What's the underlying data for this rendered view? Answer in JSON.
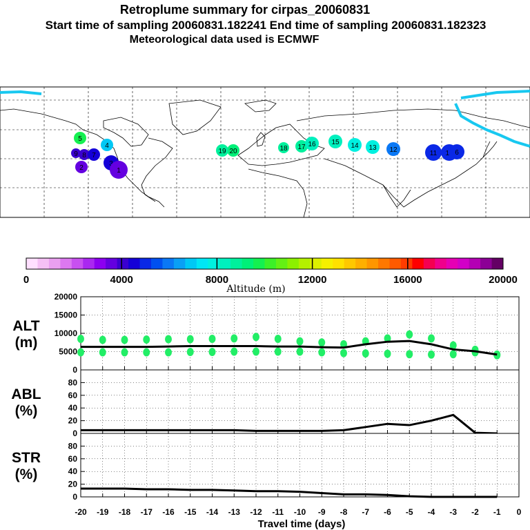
{
  "titles": {
    "line1": "Retroplume summary for cirpas_20060831",
    "line2": "Start time of sampling 20060831.182241     End time of sampling 20060831.182323",
    "line3": "Meteorological data used is ECMWF"
  },
  "colorbar": {
    "colors": [
      "#ffe0ff",
      "#f5c0f5",
      "#eaa0f0",
      "#dc78f0",
      "#c850f0",
      "#aa28f0",
      "#8c00f0",
      "#6400e0",
      "#3a00d0",
      "#1400d8",
      "#0a28e6",
      "#0050f0",
      "#0a78f5",
      "#0aa0f5",
      "#00c8f5",
      "#00e6f5",
      "#00f0e0",
      "#00f0be",
      "#00f09c",
      "#00f078",
      "#14f050",
      "#3cf028",
      "#64f014",
      "#8cf000",
      "#b4f000",
      "#dcf000",
      "#f5f000",
      "#ffe100",
      "#ffc800",
      "#ffaf00",
      "#ff9600",
      "#ff7800",
      "#ff5a00",
      "#ff3c00",
      "#ff0000",
      "#f50050",
      "#f0008c",
      "#e600b4",
      "#d200c8",
      "#b400b4",
      "#8c0096",
      "#640064"
    ],
    "tick_labels": [
      "0",
      "4000",
      "8000",
      "12000",
      "16000",
      "20000"
    ],
    "label": "Altitude (m)"
  },
  "map": {
    "plumes": [
      {
        "label": "20",
        "alt": 9500
      },
      {
        "label": "19",
        "alt": 9000
      },
      {
        "label": "18",
        "alt": 8800
      },
      {
        "label": "17",
        "alt": 8600
      },
      {
        "label": "16",
        "alt": 8400
      },
      {
        "label": "15",
        "alt": 8200
      },
      {
        "label": "14",
        "alt": 8000
      },
      {
        "label": "13",
        "alt": 7800
      },
      {
        "label": "12",
        "alt": 6000
      },
      {
        "label": "11",
        "alt": 5200
      },
      {
        "label": "10",
        "alt": 4800
      },
      {
        "label": "9",
        "alt": 4200
      },
      {
        "label": "8",
        "alt": 4000
      },
      {
        "label": "7",
        "alt": 4600
      },
      {
        "label": "6",
        "alt": 5000
      },
      {
        "label": "5",
        "alt": 9800
      },
      {
        "label": "4",
        "alt": 7000
      },
      {
        "label": "3",
        "alt": 4500
      },
      {
        "label": "2",
        "alt": 3800
      },
      {
        "label": "1",
        "alt": 3600
      }
    ]
  },
  "chart_data": [
    {
      "type": "scatter+line",
      "panel": "ALT",
      "label_line1": "ALT",
      "label_line2": "(m)",
      "ylim": [
        0,
        20000
      ],
      "yticks": [
        "0",
        "5000",
        "10000",
        "15000",
        "20000"
      ],
      "x": [
        -20,
        -19,
        -18,
        -17,
        -16,
        -15,
        -14,
        -13,
        -12,
        -11,
        -10,
        -9,
        -8,
        -7,
        -6,
        -5,
        -4,
        -3,
        -2,
        -1
      ],
      "mean_altitude": [
        6300,
        6300,
        6300,
        6300,
        6400,
        6500,
        6500,
        6500,
        6500,
        6400,
        6400,
        6200,
        6100,
        7000,
        7700,
        7900,
        7000,
        5600,
        5100,
        4200
      ],
      "cluster_upper": [
        8500,
        8200,
        8200,
        8300,
        8400,
        8400,
        8500,
        8600,
        9000,
        8500,
        7800,
        7500,
        7000,
        7800,
        8600,
        9700,
        8600,
        6700,
        5500,
        4200
      ],
      "cluster_lower": [
        4800,
        4800,
        4800,
        4800,
        4800,
        4900,
        4900,
        5000,
        5000,
        5000,
        5000,
        4800,
        4600,
        4500,
        4400,
        4300,
        4200,
        4300,
        4800,
        4000
      ],
      "point_color": "#22ee66"
    },
    {
      "type": "line",
      "panel": "ABL",
      "label_line1": "ABL",
      "label_line2": "(%)",
      "ylim": [
        0,
        100
      ],
      "yticks": [
        "0",
        "20",
        "40",
        "60",
        "80"
      ],
      "x": [
        -20,
        -19,
        -18,
        -17,
        -16,
        -15,
        -14,
        -13,
        -12,
        -11,
        -10,
        -9,
        -8,
        -7,
        -6,
        -5,
        -4,
        -3,
        -2,
        -1
      ],
      "values": [
        5,
        5,
        5,
        5,
        5,
        5,
        5,
        5,
        4,
        4,
        4,
        4,
        5,
        10,
        15,
        13,
        20,
        29,
        1,
        0
      ]
    },
    {
      "type": "line",
      "panel": "STR",
      "label_line1": "STR",
      "label_line2": "(%)",
      "ylim": [
        0,
        100
      ],
      "yticks": [
        "0",
        "20",
        "40",
        "60",
        "80"
      ],
      "x": [
        -20,
        -19,
        -18,
        -17,
        -16,
        -15,
        -14,
        -13,
        -12,
        -11,
        -10,
        -9,
        -8,
        -7,
        -6,
        -5,
        -4,
        -3,
        -2,
        -1
      ],
      "values": [
        13,
        13,
        13,
        12,
        12,
        11,
        11,
        10,
        9,
        9,
        8,
        6,
        4,
        4,
        3,
        1,
        0,
        0,
        0,
        0
      ],
      "xticks": [
        "-20",
        "-19",
        "-18",
        "-17",
        "-16",
        "-15",
        "-14",
        "-13",
        "-12",
        "-11",
        "-10",
        "-9",
        "-8",
        "-7",
        "-6",
        "-5",
        "-4",
        "-3",
        "-2",
        "-1",
        "0"
      ],
      "xlabel": "Travel time (days)"
    }
  ]
}
